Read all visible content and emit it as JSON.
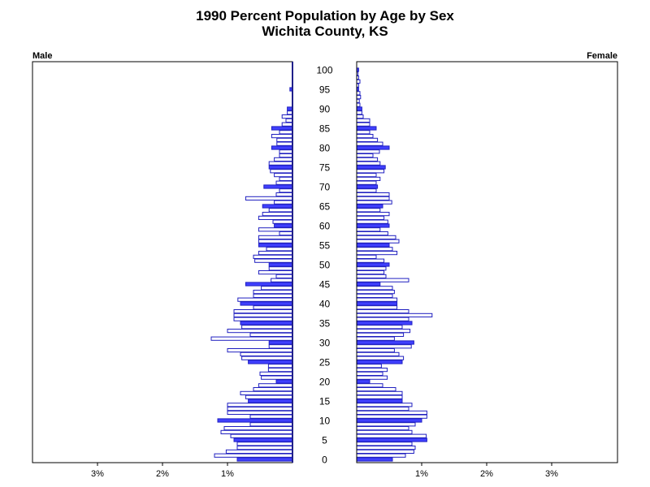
{
  "chart_data": {
    "type": "bar",
    "orientation": "horizontal-pyramid",
    "title": "1990 Percent Population by Age by Sex",
    "subtitle": "Wichita County, KS",
    "left_label": "Male",
    "right_label": "Female",
    "x_range": [
      0,
      4
    ],
    "x_ticks": [
      {
        "value": 3,
        "label": "3%"
      },
      {
        "value": 2,
        "label": "2%"
      },
      {
        "value": 1,
        "label": "1%"
      }
    ],
    "x_ticks_right": [
      {
        "value": 1,
        "label": "1%"
      },
      {
        "value": 2,
        "label": "2%"
      },
      {
        "value": 3,
        "label": "3%"
      }
    ],
    "age_labels": [
      "100",
      "95",
      "90",
      "85",
      "80",
      "75",
      "70",
      "65",
      "60",
      "55",
      "50",
      "45",
      "40",
      "35",
      "30",
      "25",
      "20",
      "15",
      "10",
      "5",
      "0"
    ],
    "ages": [
      0,
      1,
      2,
      3,
      4,
      5,
      6,
      7,
      8,
      9,
      10,
      11,
      12,
      13,
      14,
      15,
      16,
      17,
      18,
      19,
      20,
      21,
      22,
      23,
      24,
      25,
      26,
      27,
      28,
      29,
      30,
      31,
      32,
      33,
      34,
      35,
      36,
      37,
      38,
      39,
      40,
      41,
      42,
      43,
      44,
      45,
      46,
      47,
      48,
      49,
      50,
      51,
      52,
      53,
      54,
      55,
      56,
      57,
      58,
      59,
      60,
      61,
      62,
      63,
      64,
      65,
      66,
      67,
      68,
      69,
      70,
      71,
      72,
      73,
      74,
      75,
      76,
      77,
      78,
      79,
      80,
      81,
      82,
      83,
      84,
      85,
      86,
      87,
      88,
      89,
      90,
      91,
      92,
      93,
      94,
      95,
      96,
      97,
      98,
      99,
      100
    ],
    "series": [
      {
        "name": "Male",
        "values": [
          0.85,
          1.2,
          1.02,
          0.85,
          0.85,
          0.9,
          0.95,
          1.1,
          1.05,
          0.65,
          1.15,
          0.65,
          1.0,
          1.0,
          1.0,
          0.68,
          0.72,
          0.8,
          0.6,
          0.52,
          0.25,
          0.48,
          0.5,
          0.37,
          0.37,
          0.68,
          0.78,
          0.8,
          1.0,
          0.36,
          0.36,
          1.25,
          0.65,
          1.0,
          0.78,
          0.8,
          0.9,
          0.9,
          0.9,
          0.6,
          0.8,
          0.84,
          0.6,
          0.6,
          0.48,
          0.72,
          0.33,
          0.25,
          0.52,
          0.36,
          0.36,
          0.58,
          0.6,
          0.52,
          0.4,
          0.52,
          0.52,
          0.52,
          0.2,
          0.52,
          0.28,
          0.3,
          0.52,
          0.46,
          0.36,
          0.46,
          0.28,
          0.72,
          0.25,
          0.2,
          0.44,
          0.25,
          0.2,
          0.28,
          0.34,
          0.36,
          0.36,
          0.28,
          0.2,
          0.2,
          0.32,
          0.24,
          0.24,
          0.32,
          0.2,
          0.32,
          0.16,
          0.1,
          0.16,
          0.08,
          0.08,
          0,
          0,
          0,
          0,
          0.04,
          0,
          0,
          0,
          0,
          0
        ]
      },
      {
        "name": "Female",
        "values": [
          0.55,
          0.75,
          0.88,
          0.9,
          0.85,
          1.08,
          1.07,
          0.85,
          0.8,
          0.9,
          1.0,
          1.08,
          1.08,
          0.8,
          0.85,
          0.7,
          0.7,
          0.7,
          0.6,
          0.4,
          0.2,
          0.47,
          0.4,
          0.47,
          0.38,
          0.7,
          0.72,
          0.65,
          0.58,
          0.84,
          0.88,
          0.58,
          0.72,
          0.82,
          0.7,
          0.85,
          0.8,
          1.16,
          0.8,
          0.62,
          0.62,
          0.62,
          0.55,
          0.58,
          0.55,
          0.36,
          0.8,
          0.45,
          0.42,
          0.45,
          0.5,
          0.42,
          0.3,
          0.62,
          0.55,
          0.5,
          0.65,
          0.6,
          0.48,
          0.36,
          0.5,
          0.48,
          0.42,
          0.5,
          0.36,
          0.4,
          0.54,
          0.5,
          0.5,
          0.3,
          0.32,
          0.3,
          0.36,
          0.3,
          0.42,
          0.44,
          0.36,
          0.32,
          0.25,
          0.35,
          0.5,
          0.4,
          0.32,
          0.25,
          0.2,
          0.3,
          0.2,
          0.2,
          0.1,
          0.08,
          0.08,
          0.05,
          0.04,
          0.06,
          0.05,
          0.03,
          0.03,
          0.05,
          0.03,
          0.02,
          0.03
        ]
      }
    ],
    "highlight_ages_every": 5,
    "colors": {
      "highlight": "#4040FF",
      "outline": "#2020C0",
      "fill": "#FFFFFF",
      "axis": "#000000"
    },
    "grid": false
  }
}
